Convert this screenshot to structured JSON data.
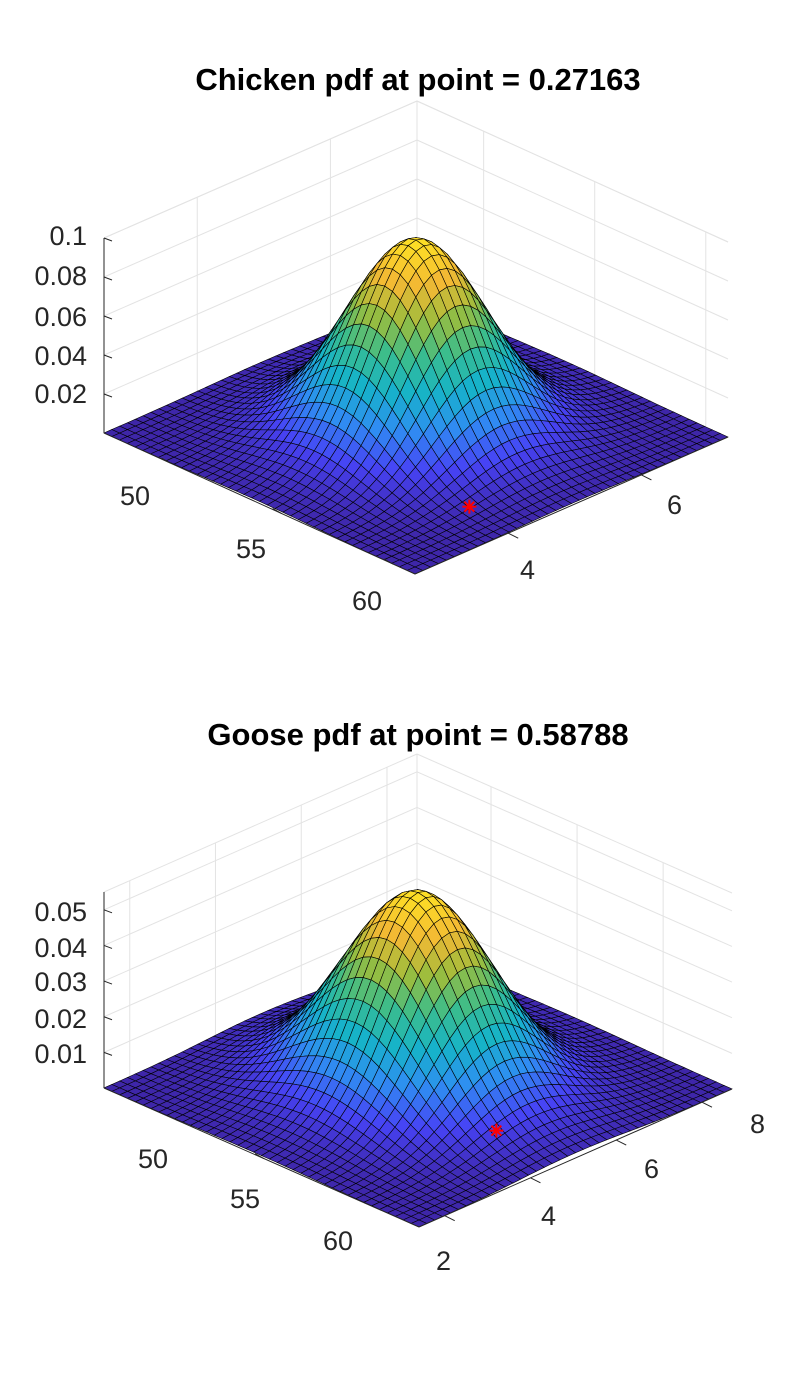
{
  "colors": {
    "grid": "#e3e3e3",
    "axis": "#262626",
    "mesh": "#000000",
    "marker": "#ff0000",
    "colormap": [
      "#3e26a8",
      "#4743f5",
      "#2f8ef2",
      "#16b3c9",
      "#3bbd8c",
      "#9bbd3d",
      "#f3b934",
      "#fde025"
    ]
  },
  "chart_data": [
    {
      "type": "surface",
      "title": "Chicken pdf at point = 0.27163",
      "x_ticks": [
        50,
        55,
        60
      ],
      "y_ticks": [
        4,
        6
      ],
      "z_ticks": [
        "0.02",
        "0.04",
        "0.06",
        "0.08",
        "0.1"
      ],
      "xlim": [
        47,
        61
      ],
      "ylim": [
        2.6,
        7.3
      ],
      "zlim": [
        0,
        0.1
      ],
      "z_ticks_values": [
        0.02,
        0.04,
        0.06,
        0.08,
        0.1
      ],
      "surface_peak": 0.1,
      "mean": [
        54,
        4.95
      ],
      "spread": [
        2.3,
        0.78
      ],
      "mesh": 40,
      "grid": true,
      "marker": {
        "symbol": "asterisk",
        "x": 58.8,
        "y": 4.15,
        "z": 0
      }
    },
    {
      "type": "surface",
      "title": "Goose pdf at point = 0.58788",
      "x_ticks": [
        50,
        55,
        60
      ],
      "y_ticks": [
        2,
        4,
        6,
        8
      ],
      "z_ticks": [
        "0.01",
        "0.02",
        "0.03",
        "0.04",
        "0.05"
      ],
      "xlim": [
        45.7,
        64
      ],
      "ylim": [
        1.4,
        8.7
      ],
      "zlim": [
        0,
        0.055
      ],
      "z_ticks_values": [
        0.01,
        0.02,
        0.03,
        0.04,
        0.05
      ],
      "surface_peak": 0.055,
      "mean": [
        54.85,
        5.05
      ],
      "spread": [
        3.4,
        1.2
      ],
      "mesh": 40,
      "grid": true,
      "marker": {
        "symbol": "asterisk",
        "x": 59.9,
        "y": 4.85,
        "z": 0
      }
    }
  ]
}
